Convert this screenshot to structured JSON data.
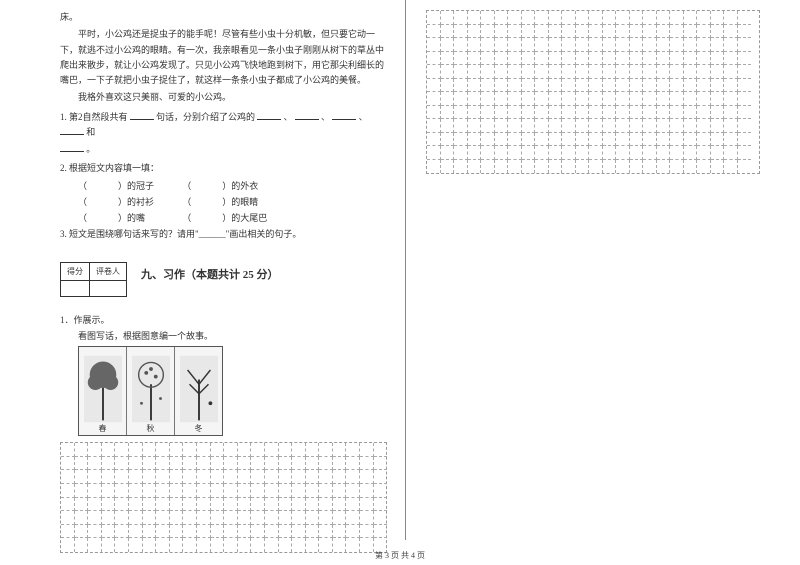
{
  "passage": {
    "line0": "床。",
    "line1": "平时，小公鸡还是捉虫子的能手呢！尽管有些小虫十分机敏，但只要它动一下，就逃不过小公鸡的眼睛。有一次，我亲眼看见一条小虫子刚刚从树下的草丛中爬出来散步，就让小公鸡发现了。只见小公鸡飞快地跑到树下，用它那尖利细长的嘴巴，一下子就把小虫子捉住了，就这样一条条小虫子都成了小公鸡的美餐。",
    "line2": "我格外喜欢这只美丽、可爱的小公鸡。"
  },
  "q1": {
    "pre": "1. 第2自然段共有",
    "mid1": "句话，分别介绍了公鸡的",
    "sep": "、",
    "and": "和",
    "end": "。"
  },
  "q2": {
    "title": "2. 根据短文内容填一填：",
    "rows": [
      {
        "a": "）的冠子",
        "b": "）的外衣"
      },
      {
        "a": "）的衬衫",
        "b": "）的眼睛"
      },
      {
        "a": "）的嘴",
        "b": "）的大尾巴"
      }
    ]
  },
  "q3": {
    "text": "3. 短文是围绕哪句话来写的？请用\"______\"画出相关的句子。"
  },
  "score_header": {
    "a": "得分",
    "b": "评卷人"
  },
  "section9": "九、习作（本题共计 25 分）",
  "writing": {
    "label": "1．作展示。",
    "instruction": "看图写话，根据图意编一个故事。",
    "captions": [
      "春",
      "秋",
      "冬"
    ]
  },
  "footer": "第 3 页  共 4 页",
  "style": {
    "page_bg": "#ffffff",
    "text_color": "#333333",
    "font_size_base": 9,
    "grid_dash_color": "#aaaaaa"
  }
}
